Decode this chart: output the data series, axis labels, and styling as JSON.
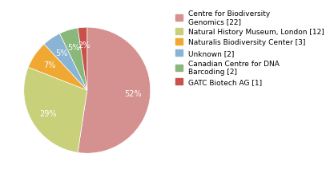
{
  "labels": [
    "Centre for Biodiversity\nGenomics [22]",
    "Natural History Museum, London [12]",
    "Naturalis Biodiversity Center [3]",
    "Unknown [2]",
    "Canadian Centre for DNA\nBarcoding [2]",
    "GATC Biotech AG [1]"
  ],
  "values": [
    22,
    12,
    3,
    2,
    2,
    1
  ],
  "colors": [
    "#d4918f",
    "#c8d07a",
    "#f0a832",
    "#8ab4d4",
    "#8ab87a",
    "#c8524a"
  ],
  "background_color": "#ffffff",
  "fontsize": 7,
  "startangle": 90,
  "pctdistance": 0.72
}
